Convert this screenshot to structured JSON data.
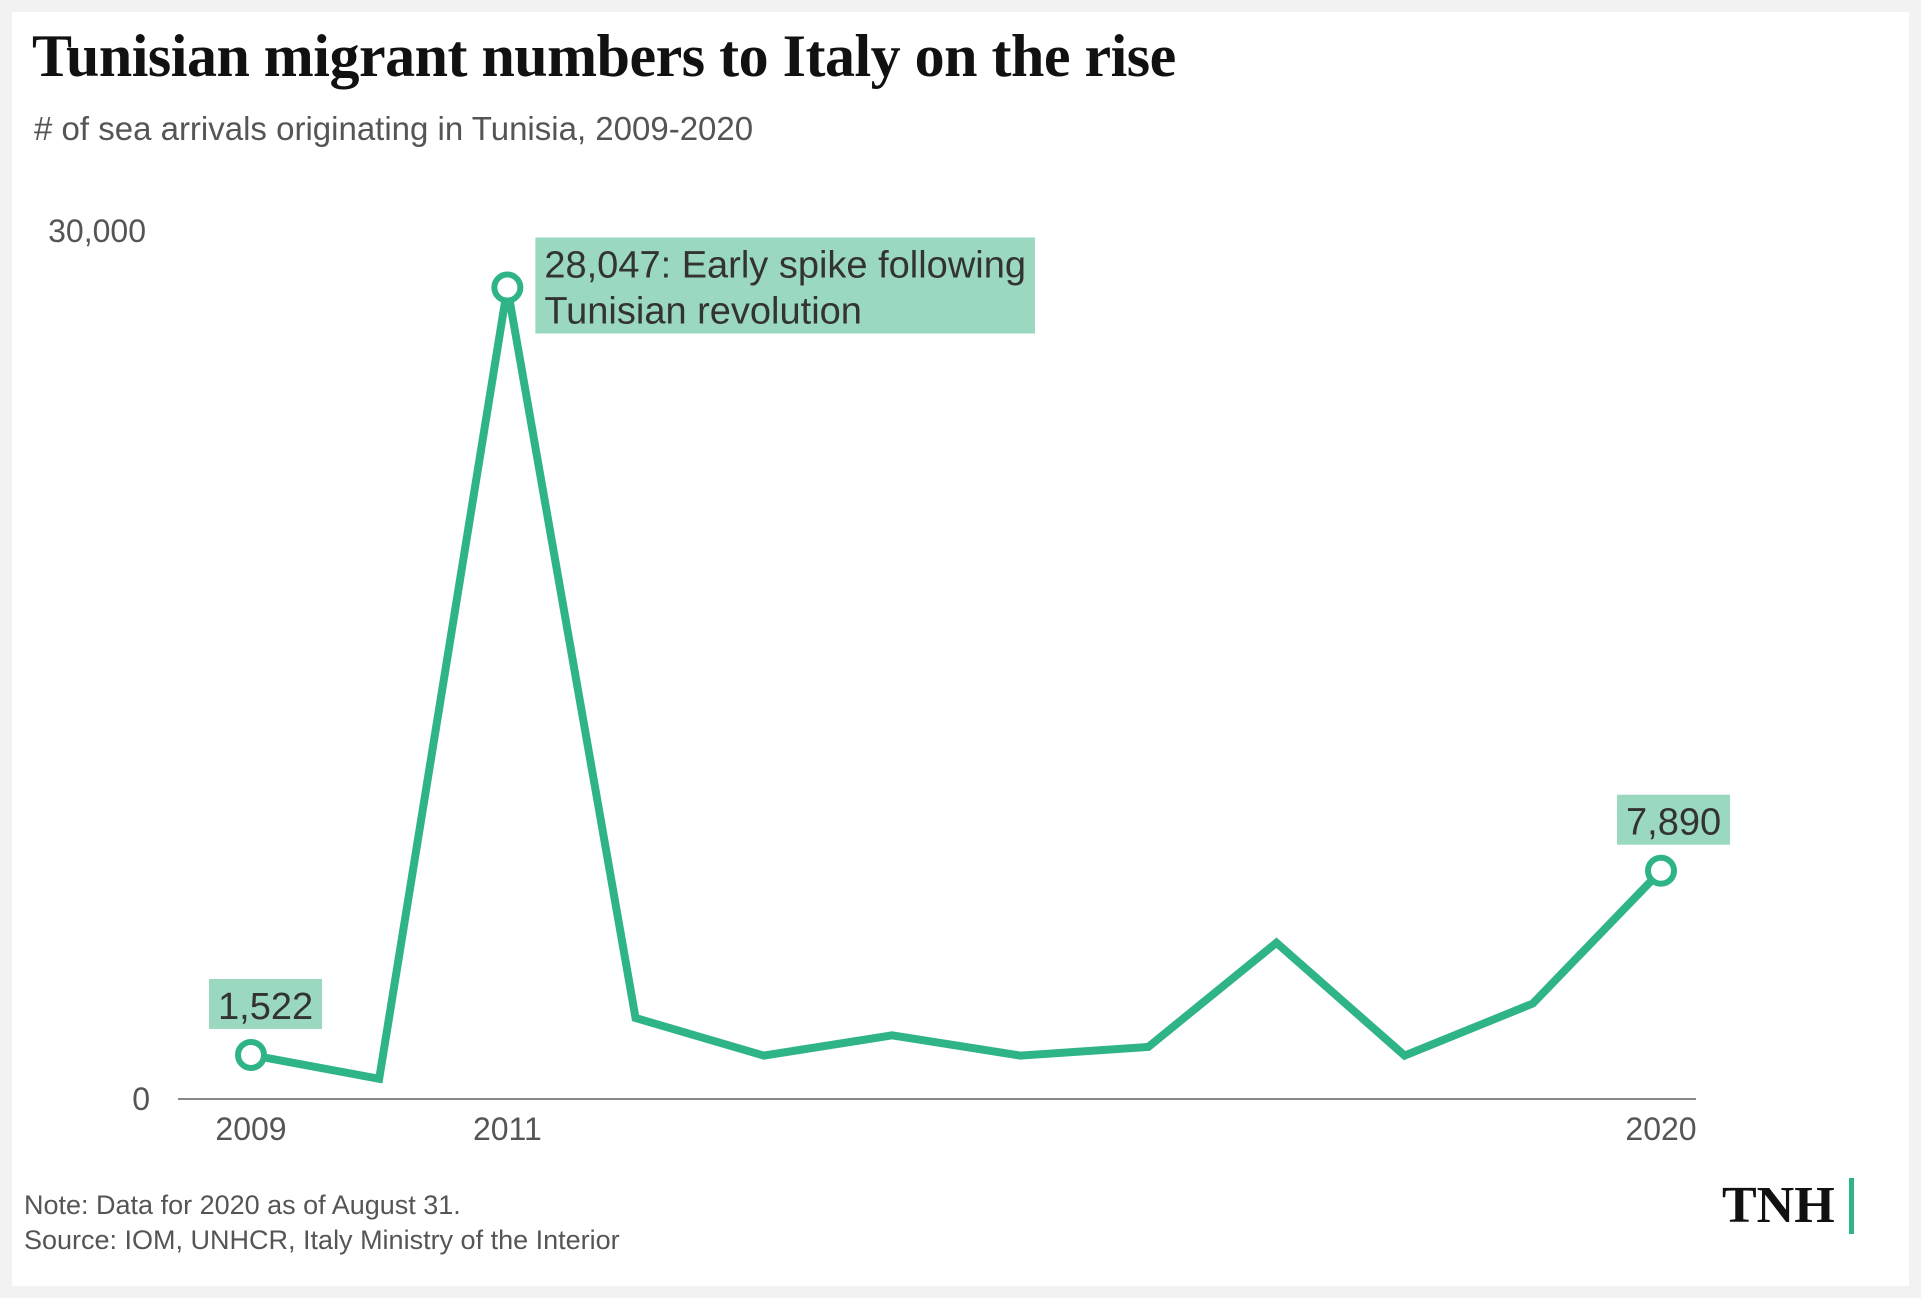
{
  "header": {
    "title": "Tunisian migrant numbers to Italy on the rise",
    "subtitle": "# of sea arrivals originating in Tunisia, 2009-2020"
  },
  "footer": {
    "note": "Note: Data for 2020 as of August 31.",
    "source": "Source: IOM, UNHCR, Italy Ministry of the Interior",
    "logo": "TNH"
  },
  "colors": {
    "line": "#2fb487",
    "annotation_bg": "#9ad9c0",
    "axis": "#555555"
  },
  "chart_data": {
    "type": "line",
    "title": "Tunisian migrant numbers to Italy on the rise",
    "subtitle": "# of sea arrivals originating in Tunisia, 2009-2020",
    "xlabel": "",
    "ylabel": "",
    "x": [
      2009,
      2010,
      2011,
      2012,
      2013,
      2014,
      2015,
      2016,
      2017,
      2018,
      2019,
      2020
    ],
    "series": [
      {
        "values": [
          1522,
          700,
          28047,
          2800,
          1500,
          2200,
          1500,
          1800,
          5400,
          1500,
          3300,
          7890
        ]
      }
    ],
    "ylim": [
      0,
      30000
    ],
    "xlim": [
      2009,
      2020
    ],
    "y_ticks": [
      {
        "value": 0,
        "label": "0"
      },
      {
        "value": 30000,
        "label": "30,000"
      }
    ],
    "x_ticks": [
      {
        "value": 2009,
        "label": "2009"
      },
      {
        "value": 2011,
        "label": "2011"
      },
      {
        "value": 2020,
        "label": "2020"
      }
    ],
    "annotations": [
      {
        "x": 2009,
        "y": 1522,
        "lines": [
          "1,522"
        ]
      },
      {
        "x": 2011,
        "y": 28047,
        "lines": [
          "28,047: Early spike following",
          "Tunisian revolution"
        ]
      },
      {
        "x": 2020,
        "y": 7890,
        "lines": [
          "7,890"
        ]
      }
    ],
    "grid": false,
    "legend": "none"
  }
}
